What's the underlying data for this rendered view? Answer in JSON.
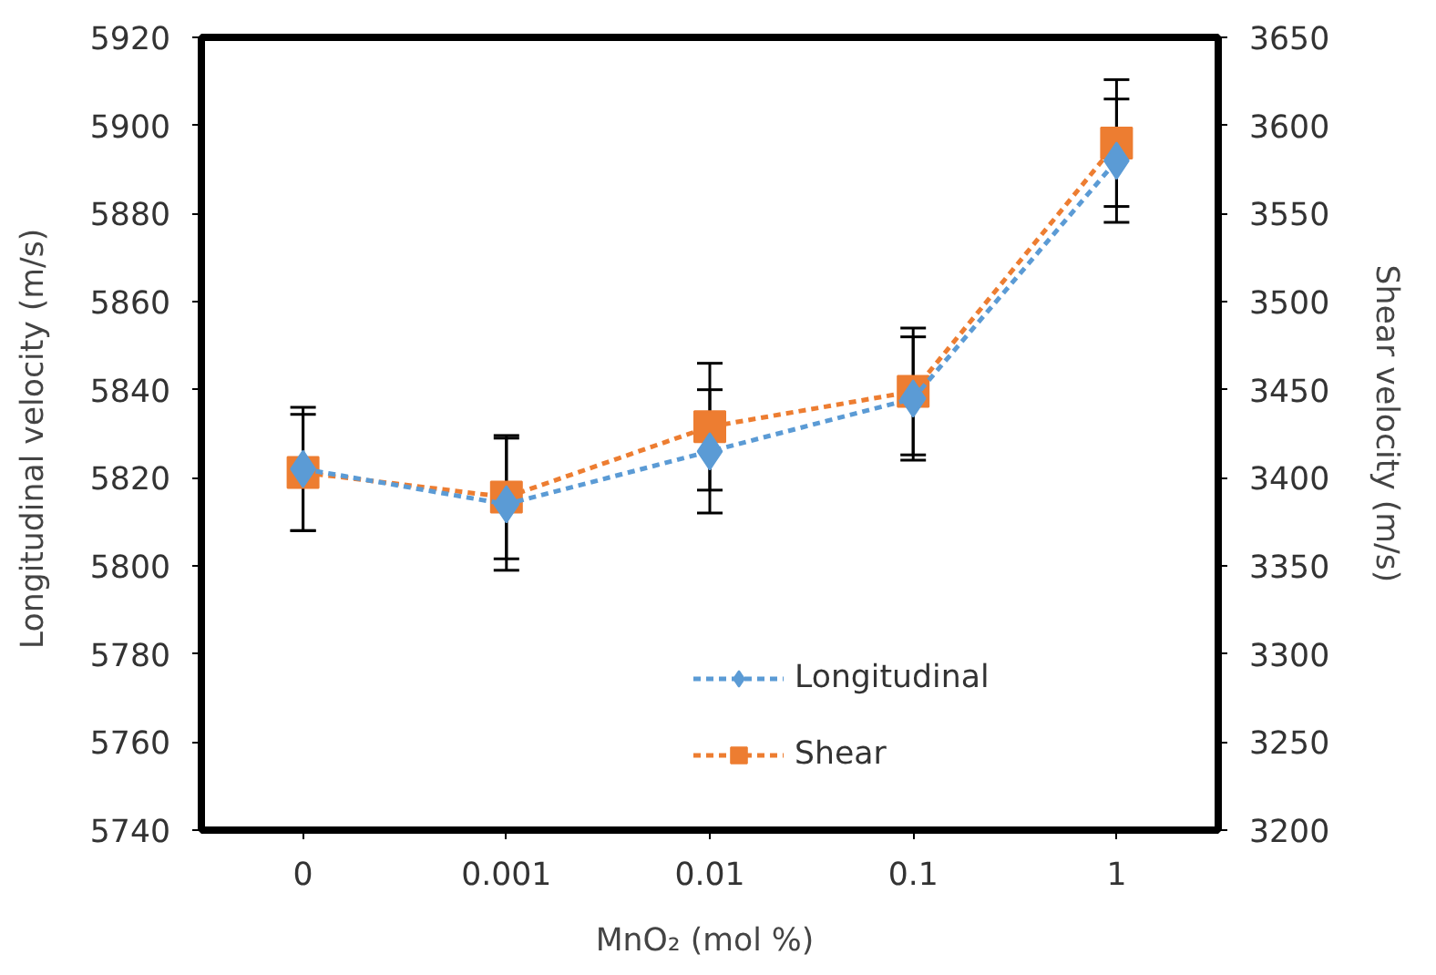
{
  "chart_data": {
    "type": "line",
    "xlabel": "MnO₂  (mol %)",
    "ylabel": "Longitudinal  velocity (m/s)",
    "y2label": "Shear   velocity (m/s)",
    "categories": [
      "0",
      "0.001",
      "0.01",
      "0.1",
      "1"
    ],
    "series": [
      {
        "name": "Longitudinal",
        "color": "#5b9bd5",
        "marker": "diamond",
        "values": [
          5822,
          5814,
          5826,
          5838,
          5892
        ],
        "errors": [
          14,
          15,
          14,
          14,
          14
        ]
      },
      {
        "name": "Shear",
        "color": "#ed7d31",
        "marker": "square",
        "axis": "y2",
        "values": [
          3403,
          3389,
          3429,
          3449,
          3590
        ],
        "errors": [
          33,
          35,
          36,
          36,
          36
        ]
      }
    ],
    "ylim": [
      5740,
      5920
    ],
    "yticks": [
      5740,
      5760,
      5780,
      5800,
      5820,
      5840,
      5860,
      5880,
      5900,
      5920
    ],
    "y2lim": [
      3200,
      3650
    ],
    "y2ticks": [
      3200,
      3250,
      3300,
      3350,
      3400,
      3450,
      3500,
      3550,
      3600,
      3650
    ],
    "line_style": "dashed",
    "grid": false,
    "legend": "bottom right"
  }
}
